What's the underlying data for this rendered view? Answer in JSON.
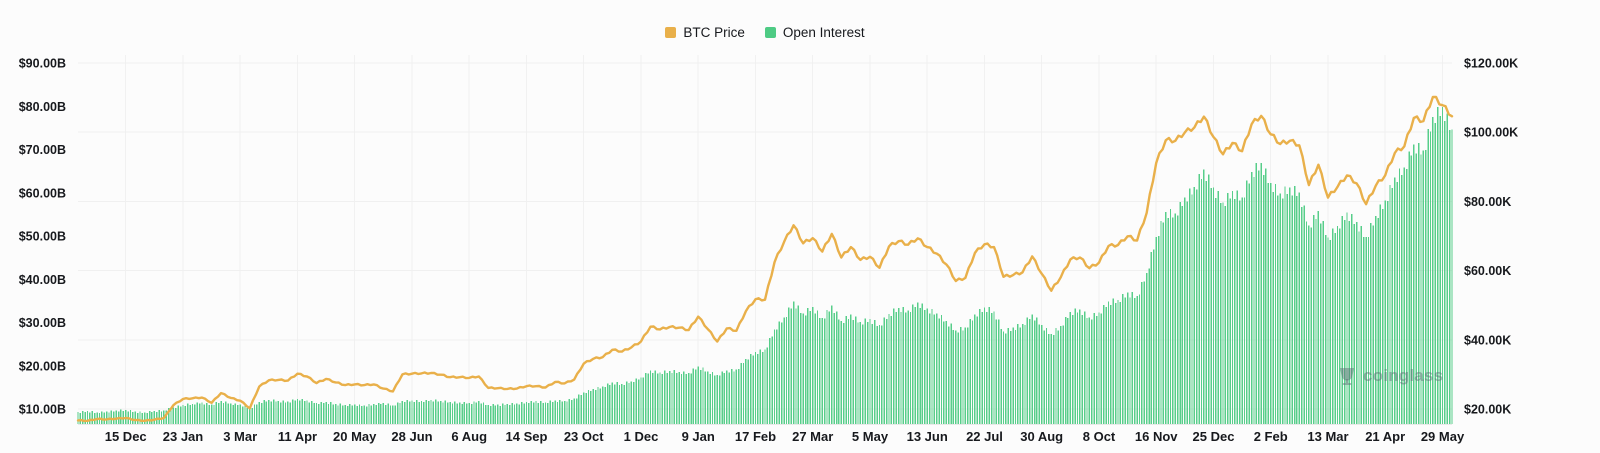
{
  "watermark": {
    "label": "coinglass"
  },
  "chart_data": {
    "type": "mixed",
    "legend_position": "top-center",
    "grid": true,
    "x_tick_labels": [
      "15 Dec",
      "23 Jan",
      "3 Mar",
      "11 Apr",
      "20 May",
      "28 Jun",
      "6 Aug",
      "14 Sep",
      "23 Oct",
      "1 Dec",
      "9 Jan",
      "17 Feb",
      "27 Mar",
      "5 May",
      "13 Jun",
      "22 Jul",
      "30 Aug",
      "8 Oct",
      "16 Nov",
      "25 Dec",
      "2 Feb",
      "13 Mar",
      "21 Apr",
      "29 May"
    ],
    "x_tick_indices": [
      5,
      11,
      17,
      23,
      29,
      35,
      41,
      47,
      53,
      59,
      65,
      71,
      77,
      83,
      89,
      95,
      101,
      107,
      113,
      119,
      125,
      131,
      137,
      143
    ],
    "left_axis": {
      "tick_labels": [
        "$90.00B",
        "$80.00B",
        "$70.00B",
        "$60.00B",
        "$50.00B",
        "$40.00B",
        "$30.00B",
        "$20.00B",
        "$10.00B"
      ],
      "tick_values": [
        90,
        80,
        70,
        60,
        50,
        40,
        30,
        20,
        10
      ],
      "unit": "USD billions"
    },
    "right_axis": {
      "tick_labels": [
        "$120.00K",
        "$100.00K",
        "$80.00K",
        "$60.00K",
        "$40.00K",
        "$20.00K"
      ],
      "tick_values": [
        120,
        100,
        80,
        60,
        40,
        20
      ],
      "unit": "USD thousands"
    },
    "series": [
      {
        "name": "BTC Price",
        "type": "line",
        "axis": "right",
        "unit": "$K",
        "color": "#e9b04a",
        "values": [
          16.7,
          16.6,
          17.1,
          17.0,
          17.2,
          17.4,
          16.8,
          16.6,
          16.9,
          17.4,
          21.1,
          22.9,
          23.1,
          23.3,
          21.8,
          24.6,
          23.2,
          22.4,
          20.2,
          26.5,
          28.3,
          28.4,
          28.2,
          30.2,
          29.4,
          27.5,
          28.7,
          27.7,
          26.9,
          27.1,
          26.9,
          27.1,
          25.9,
          25.1,
          30.0,
          30.2,
          30.3,
          30.4,
          29.9,
          29.2,
          29.2,
          29.0,
          29.4,
          26.1,
          26.0,
          25.8,
          25.9,
          26.6,
          26.6,
          26.2,
          27.8,
          27.4,
          28.5,
          33.1,
          34.5,
          35.0,
          37.1,
          36.6,
          37.8,
          39.5,
          43.8,
          43.0,
          43.7,
          43.5,
          42.8,
          46.7,
          43.1,
          39.5,
          43.3,
          42.6,
          48.3,
          51.7,
          51.6,
          62.4,
          68.3,
          73.1,
          67.9,
          69.4,
          65.5,
          70.6,
          63.8,
          66.8,
          63.1,
          64.0,
          60.8,
          67.0,
          68.5,
          67.5,
          69.3,
          66.8,
          64.9,
          61.8,
          57.0,
          57.9,
          65.1,
          67.6,
          66.8,
          58.2,
          58.7,
          59.5,
          64.1,
          59.1,
          54.2,
          58.1,
          63.2,
          63.8,
          60.7,
          62.3,
          67.1,
          67.4,
          69.9,
          68.7,
          76.7,
          91.1,
          97.7,
          97.5,
          99.9,
          101.4,
          104.5,
          98.6,
          93.6,
          96.9,
          94.5,
          102.3,
          104.7,
          99.4,
          96.6,
          97.5,
          96.2,
          84.7,
          90.6,
          81.1,
          84.2,
          87.5,
          85.2,
          79.2,
          84.5,
          87.5,
          94.0,
          95.9,
          104.1,
          103.2,
          110.2,
          107.8,
          104.6
        ]
      },
      {
        "name": "Open Interest",
        "type": "bar",
        "axis": "left",
        "unit": "$B",
        "color": "#4ecb84",
        "values": [
          9.3,
          9.5,
          9.2,
          9.4,
          9.6,
          9.8,
          9.4,
          9.2,
          9.5,
          9.7,
          10.4,
          10.9,
          11.2,
          11.5,
          11.0,
          11.8,
          11.3,
          11.0,
          10.2,
          11.6,
          12.1,
          11.9,
          11.7,
          12.3,
          12.0,
          11.4,
          11.6,
          11.2,
          10.9,
          11.0,
          10.8,
          11.1,
          11.4,
          10.8,
          11.9,
          12.0,
          11.8,
          12.1,
          11.9,
          11.6,
          11.5,
          11.4,
          11.8,
          10.9,
          11.0,
          11.1,
          11.3,
          11.6,
          11.8,
          11.5,
          12.0,
          11.9,
          12.4,
          13.8,
          14.6,
          15.2,
          16.1,
          15.8,
          16.4,
          17.3,
          18.9,
          18.4,
          18.8,
          18.6,
          18.3,
          19.8,
          18.7,
          17.9,
          18.9,
          19.1,
          21.6,
          23.2,
          23.7,
          28.4,
          31.2,
          34.8,
          32.1,
          33.6,
          31.0,
          33.9,
          30.3,
          31.8,
          30.1,
          30.8,
          29.4,
          32.0,
          33.4,
          32.8,
          34.6,
          33.2,
          32.1,
          30.4,
          28.2,
          28.9,
          31.8,
          33.5,
          32.6,
          27.9,
          28.8,
          29.6,
          31.9,
          29.4,
          27.3,
          29.2,
          32.4,
          33.0,
          31.2,
          32.3,
          34.8,
          35.2,
          36.9,
          36.1,
          41.5,
          49.8,
          55.6,
          55.2,
          58.9,
          61.3,
          65.4,
          61.2,
          57.8,
          60.4,
          58.9,
          64.8,
          66.9,
          62.3,
          59.8,
          61.2,
          60.1,
          52.4,
          55.8,
          49.6,
          52.3,
          55.4,
          53.2,
          49.8,
          54.6,
          58.2,
          63.5,
          65.8,
          71.2,
          69.8,
          77.5,
          79.8,
          74.6
        ]
      }
    ]
  }
}
